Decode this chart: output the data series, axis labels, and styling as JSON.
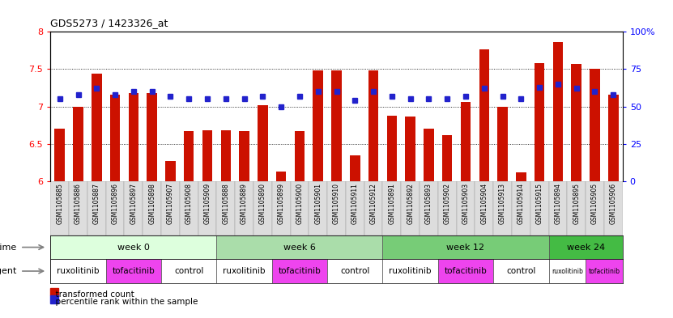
{
  "title": "GDS5273 / 1423326_at",
  "samples": [
    "GSM1105885",
    "GSM1105886",
    "GSM1105887",
    "GSM1105896",
    "GSM1105897",
    "GSM1105898",
    "GSM1105907",
    "GSM1105908",
    "GSM1105909",
    "GSM1105888",
    "GSM1105889",
    "GSM1105890",
    "GSM1105899",
    "GSM1105900",
    "GSM1105901",
    "GSM1105910",
    "GSM1105911",
    "GSM1105912",
    "GSM1105891",
    "GSM1105892",
    "GSM1105893",
    "GSM1105902",
    "GSM1105903",
    "GSM1105904",
    "GSM1105913",
    "GSM1105914",
    "GSM1105915",
    "GSM1105894",
    "GSM1105895",
    "GSM1105905",
    "GSM1105906"
  ],
  "bar_values": [
    6.7,
    7.0,
    7.44,
    7.16,
    7.18,
    7.18,
    6.27,
    6.67,
    6.68,
    6.68,
    6.67,
    7.02,
    6.13,
    6.67,
    7.48,
    7.48,
    6.35,
    7.48,
    6.88,
    6.87,
    6.7,
    6.62,
    7.06,
    7.76,
    7.0,
    6.12,
    7.58,
    7.86,
    7.57,
    7.5,
    7.16
  ],
  "dot_values": [
    55,
    58,
    62,
    58,
    60,
    60,
    57,
    55,
    55,
    55,
    55,
    57,
    50,
    57,
    60,
    60,
    54,
    60,
    57,
    55,
    55,
    55,
    57,
    62,
    57,
    55,
    63,
    65,
    62,
    60,
    58
  ],
  "ylim_left": [
    6.0,
    8.0
  ],
  "ylim_right": [
    0,
    100
  ],
  "yticks_left": [
    6.0,
    6.5,
    7.0,
    7.5,
    8.0
  ],
  "yticks_right": [
    0,
    25,
    50,
    75,
    100
  ],
  "bar_color": "#CC1100",
  "dot_color": "#2222CC",
  "week_labels": [
    "week 0",
    "week 6",
    "week 12",
    "week 24"
  ],
  "week_ranges": [
    [
      0,
      8
    ],
    [
      9,
      17
    ],
    [
      18,
      26
    ],
    [
      27,
      30
    ]
  ],
  "week_colors": [
    "#DDFFDD",
    "#AADDAA",
    "#77CC77",
    "#44BB44"
  ],
  "agent_groups": [
    {
      "label": "ruxolitinib",
      "start": 0,
      "end": 2,
      "color": "#FFFFFF"
    },
    {
      "label": "tofacitinib",
      "start": 3,
      "end": 5,
      "color": "#EE44EE"
    },
    {
      "label": "control",
      "start": 6,
      "end": 8,
      "color": "#FFFFFF"
    },
    {
      "label": "ruxolitinib",
      "start": 9,
      "end": 11,
      "color": "#FFFFFF"
    },
    {
      "label": "tofacitinib",
      "start": 12,
      "end": 14,
      "color": "#EE44EE"
    },
    {
      "label": "control",
      "start": 15,
      "end": 17,
      "color": "#FFFFFF"
    },
    {
      "label": "ruxolitinib",
      "start": 18,
      "end": 20,
      "color": "#FFFFFF"
    },
    {
      "label": "tofacitinib",
      "start": 21,
      "end": 23,
      "color": "#EE44EE"
    },
    {
      "label": "control",
      "start": 24,
      "end": 26,
      "color": "#FFFFFF"
    },
    {
      "label": "ruxolitinib",
      "start": 27,
      "end": 28,
      "color": "#FFFFFF"
    },
    {
      "label": "tofacitinib",
      "start": 29,
      "end": 30,
      "color": "#EE44EE"
    }
  ],
  "legend_bar_label": "transformed count",
  "legend_dot_label": "percentile rank within the sample"
}
